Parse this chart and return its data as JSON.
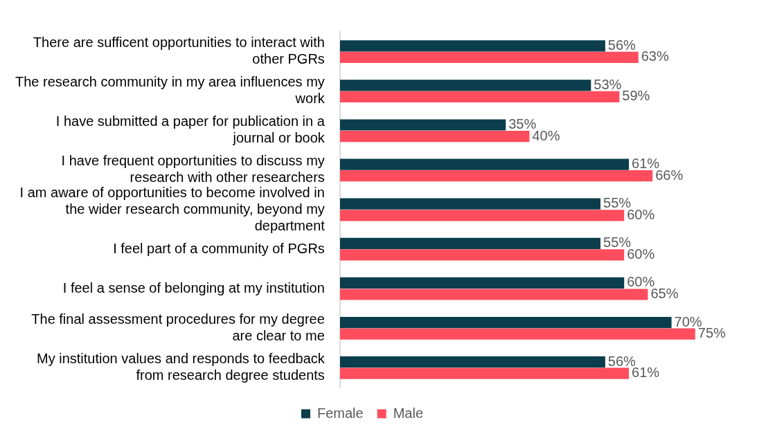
{
  "chart_data": {
    "type": "bar",
    "orientation": "horizontal",
    "relative": false,
    "categories": [
      "There are sufficent opportunities to interact with other PGRs",
      "The research community in my area influences my work",
      "I have submitted a paper for publication in a journal or book",
      "I have frequent opportunities to discuss my research with other researchers",
      "I am aware of opportunities to become involved in the wider research community, beyond my department",
      "I feel part of a community of PGRs",
      "I feel a sense of belonging at my institution",
      "The final assessment procedures for my degree are clear to me",
      "My institution values and responds to feedback from research degree students"
    ],
    "series": [
      {
        "name": "Female",
        "color": "#0b3d4c",
        "values": [
          56,
          53,
          35,
          61,
          55,
          55,
          60,
          70,
          56
        ],
        "value_labels": [
          "56%",
          "53%",
          "35%",
          "61%",
          "55%",
          "55%",
          "60%",
          "70%",
          "56%"
        ]
      },
      {
        "name": "Male",
        "color": "#ff4d5e",
        "values": [
          63,
          59,
          40,
          66,
          60,
          60,
          65,
          75,
          61
        ],
        "value_labels": [
          "63%",
          "59%",
          "40%",
          "66%",
          "60%",
          "60%",
          "65%",
          "75%",
          "61%"
        ]
      }
    ],
    "legend": "bottom",
    "grid": false
  }
}
